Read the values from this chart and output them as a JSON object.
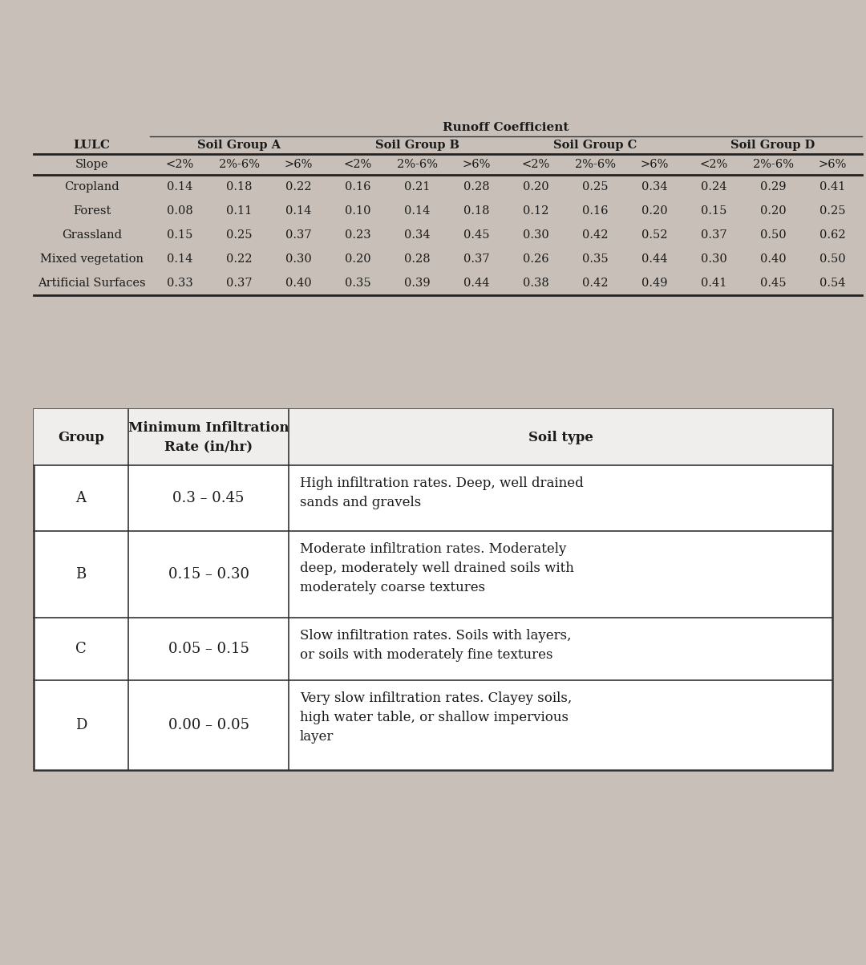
{
  "bg_color": "#c8c0b8",
  "table1_bg": "#e8e4e0",
  "table2_bg": "#ffffff",
  "table1": {
    "title": "Runoff Coefficient",
    "lulc_label": "LULC",
    "soil_groups": [
      "Soil Group A",
      "Soil Group B",
      "Soil Group C",
      "Soil Group D"
    ],
    "row_labels": [
      "Slope",
      "Cropland",
      "Forest",
      "Grassland",
      "Mixed vegetation",
      "Artificial Surfaces"
    ],
    "data": [
      [
        "<2%",
        "2%-6%",
        ">6%",
        "<2%",
        "2%-6%",
        ">6%",
        "<2%",
        "2%-6%",
        ">6%",
        "<2%",
        "2%-6%",
        ">6%"
      ],
      [
        "0.14",
        "0.18",
        "0.22",
        "0.16",
        "0.21",
        "0.28",
        "0.20",
        "0.25",
        "0.34",
        "0.24",
        "0.29",
        "0.41"
      ],
      [
        "0.08",
        "0.11",
        "0.14",
        "0.10",
        "0.14",
        "0.18",
        "0.12",
        "0.16",
        "0.20",
        "0.15",
        "0.20",
        "0.25"
      ],
      [
        "0.15",
        "0.25",
        "0.37",
        "0.23",
        "0.34",
        "0.45",
        "0.30",
        "0.42",
        "0.52",
        "0.37",
        "0.50",
        "0.62"
      ],
      [
        "0.14",
        "0.22",
        "0.30",
        "0.20",
        "0.28",
        "0.37",
        "0.26",
        "0.35",
        "0.44",
        "0.30",
        "0.40",
        "0.50"
      ],
      [
        "0.33",
        "0.37",
        "0.40",
        "0.35",
        "0.39",
        "0.44",
        "0.38",
        "0.42",
        "0.49",
        "0.41",
        "0.45",
        "0.54"
      ]
    ]
  },
  "table2": {
    "headers": [
      "Group",
      "Minimum Infiltration\nRate (in/hr)",
      "Soil type"
    ],
    "groups": [
      "A",
      "B",
      "C",
      "D"
    ],
    "rates": [
      "0.3 – 0.45",
      "0.15 – 0.30",
      "0.05 – 0.15",
      "0.00 – 0.05"
    ],
    "descriptions": [
      "High infiltration rates. Deep, well drained\nsands and gravels",
      "Moderate infiltration rates. Moderately\ndeep, moderately well drained soils with\nmoderately coarse textures",
      "Slow infiltration rates. Soils with layers,\nor soils with moderately fine textures",
      "Very slow infiltration rates. Clayey soils,\nhigh water table, or shallow impervious\nlayer"
    ]
  }
}
